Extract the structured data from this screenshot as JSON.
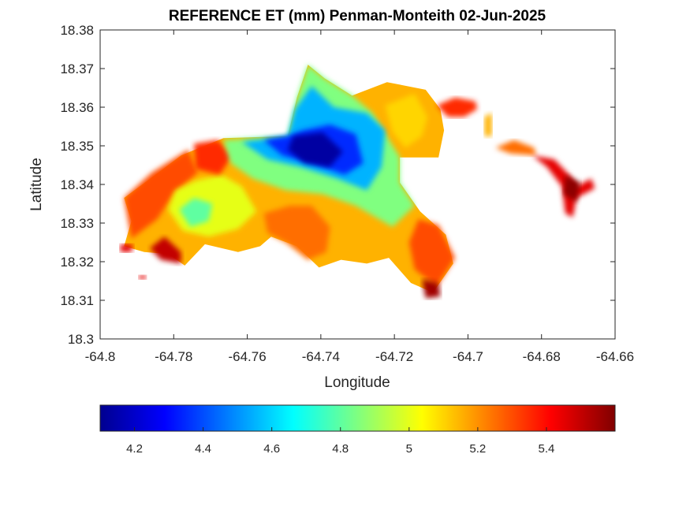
{
  "chart_data": {
    "type": "heatmap",
    "title": "REFERENCE ET (mm) Penman-Monteith 02-Jun-2025",
    "xlabel": "Longitude",
    "ylabel": "Latitude",
    "xlim": [
      -64.8,
      -64.66
    ],
    "ylim": [
      18.3,
      18.38
    ],
    "xticks": [
      -64.8,
      -64.78,
      -64.76,
      -64.74,
      -64.72,
      -64.7,
      -64.68,
      -64.66
    ],
    "xtick_labels": [
      "-64.8",
      "-64.78",
      "-64.76",
      "-64.74",
      "-64.72",
      "-64.7",
      "-64.68",
      "-64.66"
    ],
    "yticks": [
      18.3,
      18.31,
      18.32,
      18.33,
      18.34,
      18.35,
      18.36,
      18.37,
      18.38
    ],
    "ytick_labels": [
      "18.3",
      "18.31",
      "18.32",
      "18.33",
      "18.34",
      "18.35",
      "18.36",
      "18.37",
      "18.38"
    ],
    "colormap": "jet",
    "grid": false,
    "colorbar": {
      "location": "bottom",
      "range": [
        4.1,
        5.6
      ],
      "ticks": [
        4.2,
        4.4,
        4.6,
        4.8,
        5.0,
        5.2,
        5.4
      ],
      "tick_labels": [
        "4.2",
        "4.4",
        "4.6",
        "4.8",
        "5",
        "5.2",
        "5.4"
      ]
    },
    "regions": [
      {
        "shape": [
          [
            -64.7935,
            18.3365
          ],
          [
            -64.785,
            18.3425
          ],
          [
            -64.778,
            18.3475
          ],
          [
            -64.7665,
            18.352
          ],
          [
            -64.749,
            18.3525
          ],
          [
            -64.7465,
            18.3625
          ],
          [
            -64.7435,
            18.371
          ],
          [
            -64.739,
            18.3675
          ],
          [
            -64.7315,
            18.363
          ],
          [
            -64.722,
            18.3665
          ],
          [
            -64.7115,
            18.3645
          ],
          [
            -64.7075,
            18.3595
          ],
          [
            -64.7065,
            18.354
          ],
          [
            -64.708,
            18.347
          ],
          [
            -64.7185,
            18.347
          ],
          [
            -64.7185,
            18.3405
          ],
          [
            -64.713,
            18.333
          ],
          [
            -64.706,
            18.327
          ],
          [
            -64.704,
            18.3195
          ],
          [
            -64.7095,
            18.312
          ],
          [
            -64.7155,
            18.3145
          ],
          [
            -64.7215,
            18.321
          ],
          [
            -64.7275,
            18.3195
          ],
          [
            -64.7345,
            18.3205
          ],
          [
            -64.7405,
            18.3185
          ],
          [
            -64.7465,
            18.324
          ],
          [
            -64.7535,
            18.3265
          ],
          [
            -64.7565,
            18.324
          ],
          [
            -64.7625,
            18.3225
          ],
          [
            -64.7715,
            18.3245
          ],
          [
            -64.777,
            18.319
          ],
          [
            -64.7815,
            18.322
          ],
          [
            -64.788,
            18.3225
          ],
          [
            -64.7935,
            18.324
          ],
          [
            -64.7915,
            18.3305
          ]
        ],
        "value": 5.15
      },
      {
        "shape": [
          [
            -64.7935,
            18.3365
          ],
          [
            -64.786,
            18.343
          ],
          [
            -64.776,
            18.349
          ],
          [
            -64.7735,
            18.343
          ],
          [
            -64.78,
            18.3375
          ],
          [
            -64.7845,
            18.331
          ],
          [
            -64.7915,
            18.326
          ]
        ],
        "value": 5.3
      },
      {
        "shape": [
          [
            -64.7795,
            18.3385
          ],
          [
            -64.774,
            18.341
          ],
          [
            -64.767,
            18.3425
          ],
          [
            -64.7615,
            18.3395
          ],
          [
            -64.7575,
            18.333
          ],
          [
            -64.7625,
            18.3285
          ],
          [
            -64.7705,
            18.3265
          ],
          [
            -64.7775,
            18.328
          ],
          [
            -64.7815,
            18.3335
          ]
        ],
        "value": 5.0
      },
      {
        "shape": [
          [
            -64.7785,
            18.3335
          ],
          [
            -64.7745,
            18.3365
          ],
          [
            -64.7695,
            18.335
          ],
          [
            -64.7705,
            18.3305
          ],
          [
            -64.7755,
            18.329
          ]
        ],
        "value": 4.8
      },
      {
        "shape": [
          [
            -64.7745,
            18.3505
          ],
          [
            -64.768,
            18.3515
          ],
          [
            -64.764,
            18.3475
          ],
          [
            -64.7675,
            18.3425
          ],
          [
            -64.774,
            18.344
          ]
        ],
        "value": 5.35
      },
      {
        "shape": [
          [
            -64.7665,
            18.3515
          ],
          [
            -64.749,
            18.3525
          ],
          [
            -64.7465,
            18.3625
          ],
          [
            -64.7435,
            18.371
          ],
          [
            -64.739,
            18.3675
          ],
          [
            -64.7315,
            18.363
          ],
          [
            -64.726,
            18.3585
          ],
          [
            -64.7185,
            18.347
          ],
          [
            -64.7185,
            18.3405
          ],
          [
            -64.7145,
            18.3345
          ],
          [
            -64.7205,
            18.329
          ],
          [
            -64.7305,
            18.3345
          ],
          [
            -64.7395,
            18.3375
          ],
          [
            -64.7495,
            18.3385
          ],
          [
            -64.7585,
            18.3415
          ],
          [
            -64.7645,
            18.3455
          ]
        ],
        "value": 4.85
      },
      {
        "shape": [
          [
            -64.7615,
            18.351
          ],
          [
            -64.749,
            18.3525
          ],
          [
            -64.747,
            18.3595
          ],
          [
            -64.7425,
            18.3655
          ],
          [
            -64.7365,
            18.36
          ],
          [
            -64.7275,
            18.3585
          ],
          [
            -64.7225,
            18.354
          ],
          [
            -64.7235,
            18.3445
          ],
          [
            -64.7275,
            18.3385
          ],
          [
            -64.7355,
            18.3415
          ],
          [
            -64.7455,
            18.3445
          ],
          [
            -64.7545,
            18.3465
          ]
        ],
        "value": 4.55
      },
      {
        "shape": [
          [
            -64.7555,
            18.3515
          ],
          [
            -64.749,
            18.3525
          ],
          [
            -64.745,
            18.354
          ],
          [
            -64.7375,
            18.3555
          ],
          [
            -64.7305,
            18.353
          ],
          [
            -64.7285,
            18.3455
          ],
          [
            -64.7335,
            18.3425
          ],
          [
            -64.7425,
            18.3455
          ],
          [
            -64.7505,
            18.3475
          ]
        ],
        "value": 4.35
      },
      {
        "shape": [
          [
            -64.7475,
            18.3525
          ],
          [
            -64.7395,
            18.3535
          ],
          [
            -64.734,
            18.3485
          ],
          [
            -64.7375,
            18.3445
          ],
          [
            -64.7445,
            18.3455
          ],
          [
            -64.749,
            18.349
          ]
        ],
        "value": 4.15
      },
      {
        "shape": [
          [
            -64.7555,
            18.3325
          ],
          [
            -64.7485,
            18.3345
          ],
          [
            -64.7425,
            18.3345
          ],
          [
            -64.7375,
            18.329
          ],
          [
            -64.7385,
            18.3225
          ],
          [
            -64.7435,
            18.3205
          ],
          [
            -64.7495,
            18.325
          ],
          [
            -64.7545,
            18.3275
          ]
        ],
        "value": 5.25
      },
      {
        "shape": [
          [
            -64.7135,
            18.331
          ],
          [
            -64.708,
            18.3295
          ],
          [
            -64.7035,
            18.321
          ],
          [
            -64.7085,
            18.3135
          ],
          [
            -64.7145,
            18.318
          ],
          [
            -64.716,
            18.325
          ]
        ],
        "value": 5.3
      },
      {
        "shape": [
          [
            -64.7125,
            18.3155
          ],
          [
            -64.708,
            18.3145
          ],
          [
            -64.7075,
            18.311
          ],
          [
            -64.7115,
            18.3105
          ]
        ],
        "value": 5.55
      },
      {
        "shape": [
          [
            -64.7865,
            18.3235
          ],
          [
            -64.7825,
            18.3265
          ],
          [
            -64.778,
            18.3225
          ],
          [
            -64.778,
            18.3195
          ],
          [
            -64.7835,
            18.3205
          ]
        ],
        "value": 5.5
      },
      {
        "shape": [
          [
            -64.7225,
            18.3605
          ],
          [
            -64.7145,
            18.3635
          ],
          [
            -64.711,
            18.3575
          ],
          [
            -64.7125,
            18.3525
          ],
          [
            -64.717,
            18.3495
          ],
          [
            -64.7205,
            18.3535
          ]
        ],
        "value": 5.1
      },
      {
        "shape": [
          [
            -64.7085,
            18.3605
          ],
          [
            -64.7035,
            18.3625
          ],
          [
            -64.698,
            18.3615
          ],
          [
            -64.6975,
            18.3595
          ],
          [
            -64.701,
            18.3575
          ],
          [
            -64.7055,
            18.3575
          ]
        ],
        "value": 5.35
      },
      {
        "shape": [
          [
            -64.6955,
            18.3575
          ],
          [
            -64.6935,
            18.3585
          ],
          [
            -64.6935,
            18.3525
          ],
          [
            -64.6955,
            18.3525
          ]
        ],
        "value": 5.15
      },
      {
        "shape": [
          [
            -64.6925,
            18.3495
          ],
          [
            -64.6875,
            18.3515
          ],
          [
            -64.682,
            18.3495
          ],
          [
            -64.6815,
            18.3475
          ],
          [
            -64.6885,
            18.348
          ]
        ],
        "value": 5.25
      },
      {
        "shape": [
          [
            -64.6825,
            18.3475
          ],
          [
            -64.6765,
            18.3465
          ],
          [
            -64.6725,
            18.3425
          ],
          [
            -64.6705,
            18.3395
          ],
          [
            -64.6665,
            18.3415
          ],
          [
            -64.6655,
            18.339
          ],
          [
            -64.6705,
            18.3365
          ],
          [
            -64.6715,
            18.3315
          ],
          [
            -64.6735,
            18.3325
          ],
          [
            -64.6745,
            18.3395
          ],
          [
            -64.6785,
            18.3445
          ]
        ],
        "value": 5.45
      },
      {
        "shape": [
          [
            -64.6735,
            18.3425
          ],
          [
            -64.6695,
            18.3405
          ],
          [
            -64.6705,
            18.3355
          ],
          [
            -64.674,
            18.3375
          ]
        ],
        "value": 5.58
      },
      {
        "shape": [
          [
            -64.7945,
            18.3245
          ],
          [
            -64.791,
            18.3245
          ],
          [
            -64.7915,
            18.3225
          ],
          [
            -64.7945,
            18.3225
          ]
        ],
        "value": 5.45
      },
      {
        "shape": [
          [
            -64.7895,
            18.3165
          ],
          [
            -64.7875,
            18.3165
          ],
          [
            -64.7875,
            18.3155
          ],
          [
            -64.7895,
            18.3155
          ]
        ],
        "value": 5.45
      }
    ]
  }
}
